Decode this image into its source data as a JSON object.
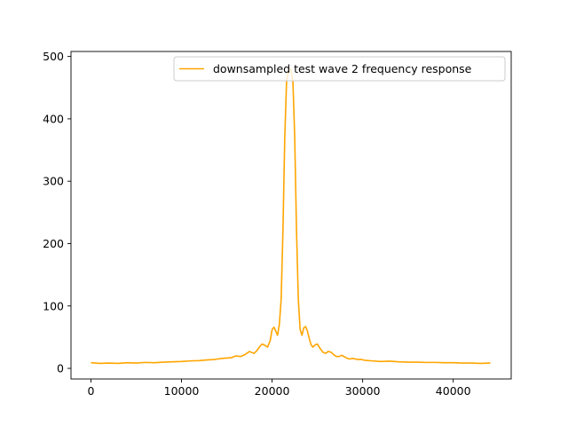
{
  "chart_data": {
    "type": "line",
    "title": "",
    "xlabel": "",
    "ylabel": "",
    "xlim": [
      -2200,
      46400
    ],
    "ylim": [
      -17,
      508
    ],
    "xticks": [
      0,
      10000,
      20000,
      30000,
      40000
    ],
    "yticks": [
      0,
      100,
      200,
      300,
      400,
      500
    ],
    "xtick_labels": [
      "0",
      "10000",
      "20000",
      "30000",
      "40000"
    ],
    "ytick_labels": [
      "0",
      "100",
      "200",
      "300",
      "400",
      "500"
    ],
    "grid": false,
    "legend": {
      "placement": "upper-right"
    },
    "series": [
      {
        "name": "downsampled test wave 2 frequency response",
        "color": "#FFA500",
        "x": [
          0,
          1000,
          2000,
          3000,
          4000,
          5000,
          6000,
          7000,
          8000,
          9000,
          10000,
          11000,
          12000,
          12800,
          13500,
          14000,
          14500,
          15000,
          15500,
          16000,
          16500,
          17000,
          17500,
          18000,
          18300,
          18600,
          18900,
          19200,
          19500,
          19800,
          20000,
          20200,
          20400,
          20600,
          20800,
          21000,
          21200,
          21400,
          21600,
          21800,
          22050,
          22300,
          22500,
          22700,
          22900,
          23100,
          23300,
          23500,
          23700,
          23900,
          24100,
          24300,
          24500,
          24800,
          25000,
          25300,
          25600,
          25900,
          26200,
          26500,
          26800,
          27100,
          27400,
          27700,
          28000,
          28300,
          28600,
          28900,
          29200,
          29500,
          29800,
          30200,
          31000,
          32000,
          33000,
          34000,
          35000,
          36000,
          37000,
          38000,
          39000,
          40000,
          41000,
          42000,
          43000,
          44100
        ],
        "y": [
          9,
          8,
          8.5,
          8,
          9,
          8.5,
          9.5,
          9,
          10,
          10.5,
          11,
          12,
          12.5,
          13.5,
          14,
          15,
          16,
          16.5,
          17,
          20,
          19,
          22,
          27,
          24,
          28,
          34,
          39,
          37,
          34,
          45,
          62,
          66,
          60,
          53,
          70,
          110,
          220,
          370,
          460,
          478,
          480,
          460,
          370,
          220,
          110,
          62,
          53,
          65,
          67,
          60,
          48,
          38,
          34,
          38,
          39,
          32,
          26,
          24,
          27,
          26,
          22,
          19,
          19,
          21,
          18.5,
          16,
          15,
          16,
          15,
          14,
          14.5,
          13,
          12,
          11,
          11.5,
          10.5,
          10,
          10,
          9.5,
          9.5,
          9,
          9,
          8.5,
          8.5,
          8,
          8.5
        ]
      }
    ]
  }
}
